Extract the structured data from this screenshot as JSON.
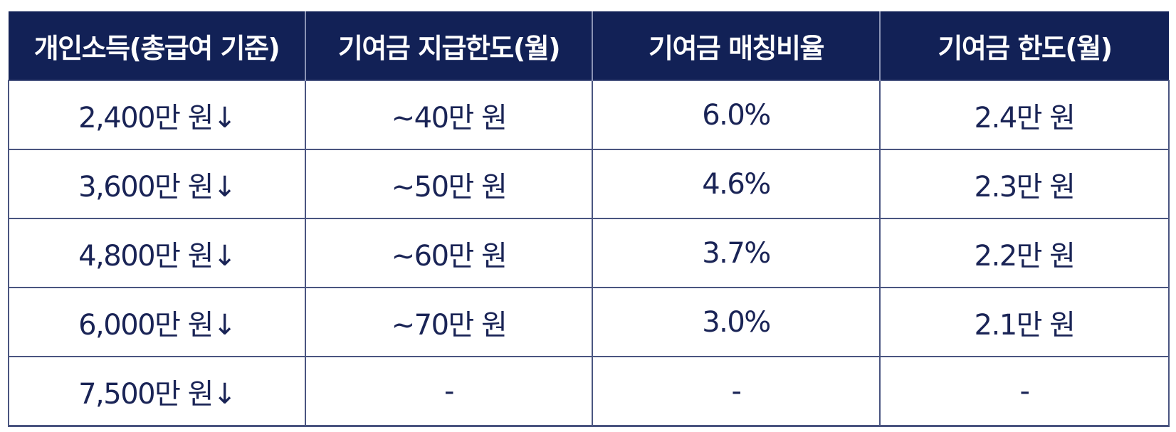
{
  "table": {
    "headers": [
      "개인소득(총급여 기준)",
      "기여금 지급한도(월)",
      "기여금 매칭비율",
      "기여금 한도(월)"
    ],
    "rows": [
      [
        "2,400만 원↓",
        "~40만 원",
        "6.0%",
        "2.4만 원"
      ],
      [
        "3,600만 원↓",
        "~50만 원",
        "4.6%",
        "2.3만 원"
      ],
      [
        "4,800만 원↓",
        "~60만 원",
        "3.7%",
        "2.2만 원"
      ],
      [
        "6,000만 원↓",
        "~70만 원",
        "3.0%",
        "2.1만 원"
      ],
      [
        "7,500만 원↓",
        "-",
        "-",
        "-"
      ]
    ]
  },
  "colors": {
    "header_bg": "#122156",
    "header_text": "#ffffff",
    "cell_text": "#1a2456",
    "border": "#4a5580"
  }
}
